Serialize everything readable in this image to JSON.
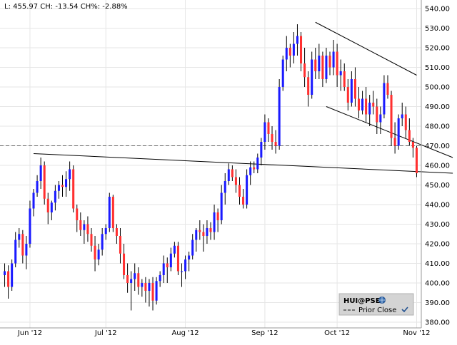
{
  "header": {
    "text": "L: 455.97 CH: -13.54 CH%: -2.88%"
  },
  "legend": {
    "title": "HUI@PSE",
    "entry": "Prior Close",
    "info_icon": "globe-icon",
    "check_icon": "checkmark-icon"
  },
  "colors": {
    "up": "#1a1aff",
    "down": "#ff3030",
    "grid": "#e6e6e6",
    "prior_close": "#666666",
    "trendline": "#000000"
  },
  "chart_data": {
    "type": "candlestick",
    "ylim": [
      380,
      545
    ],
    "yticks": [
      380,
      390,
      400,
      410,
      420,
      430,
      440,
      450,
      460,
      470,
      480,
      490,
      500,
      510,
      520,
      530,
      540
    ],
    "xticks": [
      {
        "label": "Jun '12",
        "index": 7
      },
      {
        "label": "Jul '12",
        "index": 28
      },
      {
        "label": "Aug '12",
        "index": 50
      },
      {
        "label": "Sep '12",
        "index": 72
      },
      {
        "label": "Oct '12",
        "index": 92
      },
      {
        "label": "Nov '12",
        "index": 114
      }
    ],
    "prior_close": 470,
    "trendlines": [
      {
        "start": [
          8,
          466
        ],
        "end": [
          124,
          456
        ]
      },
      {
        "start": [
          86,
          533
        ],
        "end": [
          114,
          506
        ]
      },
      {
        "start": [
          89,
          490
        ],
        "end": [
          124,
          464
        ]
      }
    ],
    "candles": [
      [
        404,
        410,
        398,
        406
      ],
      [
        406,
        409,
        392,
        398
      ],
      [
        398,
        412,
        396,
        410
      ],
      [
        410,
        426,
        408,
        422
      ],
      [
        422,
        428,
        418,
        425
      ],
      [
        425,
        427,
        410,
        414
      ],
      [
        414,
        424,
        407,
        420
      ],
      [
        420,
        442,
        418,
        438
      ],
      [
        438,
        448,
        434,
        446
      ],
      [
        446,
        455,
        444,
        452
      ],
      [
        452,
        464,
        448,
        460
      ],
      [
        460,
        462,
        440,
        443
      ],
      [
        443,
        446,
        430,
        436
      ],
      [
        436,
        442,
        432,
        441
      ],
      [
        441,
        450,
        437,
        447
      ],
      [
        447,
        452,
        443,
        450
      ],
      [
        450,
        455,
        444,
        449
      ],
      [
        449,
        457,
        444,
        453
      ],
      [
        453,
        462,
        447,
        458
      ],
      [
        458,
        460,
        436,
        438
      ],
      [
        438,
        440,
        426,
        432
      ],
      [
        432,
        436,
        424,
        427
      ],
      [
        427,
        432,
        420,
        430
      ],
      [
        430,
        434,
        421,
        425
      ],
      [
        425,
        428,
        416,
        419
      ],
      [
        419,
        424,
        406,
        412
      ],
      [
        412,
        420,
        409,
        417
      ],
      [
        417,
        428,
        414,
        425
      ],
      [
        425,
        430,
        422,
        428
      ],
      [
        428,
        446,
        426,
        444
      ],
      [
        444,
        445,
        426,
        428
      ],
      [
        428,
        430,
        420,
        424
      ],
      [
        424,
        428,
        410,
        415
      ],
      [
        415,
        420,
        402,
        404
      ],
      [
        404,
        410,
        395,
        400
      ],
      [
        400,
        406,
        386,
        402
      ],
      [
        402,
        410,
        396,
        405
      ],
      [
        405,
        408,
        394,
        398
      ],
      [
        398,
        402,
        393,
        400
      ],
      [
        400,
        403,
        390,
        396
      ],
      [
        396,
        402,
        388,
        400
      ],
      [
        400,
        403,
        386,
        391
      ],
      [
        391,
        403,
        389,
        401
      ],
      [
        401,
        406,
        398,
        404
      ],
      [
        404,
        414,
        400,
        410
      ],
      [
        410,
        413,
        400,
        408
      ],
      [
        408,
        418,
        406,
        415
      ],
      [
        415,
        421,
        413,
        419
      ],
      [
        419,
        421,
        404,
        406
      ],
      [
        406,
        410,
        398,
        406
      ],
      [
        406,
        414,
        402,
        412
      ],
      [
        412,
        416,
        406,
        414
      ],
      [
        414,
        425,
        412,
        422
      ],
      [
        422,
        428,
        416,
        427
      ],
      [
        427,
        432,
        422,
        426
      ],
      [
        426,
        430,
        416,
        424
      ],
      [
        424,
        432,
        420,
        428
      ],
      [
        428,
        431,
        422,
        426
      ],
      [
        426,
        440,
        422,
        436
      ],
      [
        436,
        438,
        426,
        432
      ],
      [
        432,
        450,
        430,
        446
      ],
      [
        446,
        456,
        440,
        452
      ],
      [
        452,
        461,
        450,
        458
      ],
      [
        458,
        460,
        452,
        454
      ],
      [
        454,
        458,
        446,
        450
      ],
      [
        450,
        454,
        440,
        444
      ],
      [
        444,
        448,
        438,
        440
      ],
      [
        440,
        458,
        438,
        455
      ],
      [
        455,
        462,
        450,
        459
      ],
      [
        459,
        462,
        456,
        458
      ],
      [
        458,
        466,
        456,
        464
      ],
      [
        464,
        474,
        460,
        472
      ],
      [
        472,
        486,
        468,
        482
      ],
      [
        482,
        484,
        472,
        476
      ],
      [
        476,
        480,
        468,
        472
      ],
      [
        472,
        478,
        466,
        470
      ],
      [
        470,
        504,
        468,
        500
      ],
      [
        500,
        516,
        498,
        514
      ],
      [
        514,
        526,
        508,
        520
      ],
      [
        520,
        522,
        510,
        516
      ],
      [
        516,
        528,
        512,
        522
      ],
      [
        522,
        532,
        516,
        526
      ],
      [
        526,
        528,
        508,
        512
      ],
      [
        512,
        520,
        500,
        505
      ],
      [
        505,
        508,
        490,
        496
      ],
      [
        496,
        518,
        494,
        514
      ],
      [
        514,
        520,
        504,
        508
      ],
      [
        508,
        522,
        504,
        516
      ],
      [
        516,
        518,
        500,
        504
      ],
      [
        504,
        520,
        502,
        516
      ],
      [
        516,
        518,
        506,
        510
      ],
      [
        510,
        524,
        506,
        518
      ],
      [
        518,
        522,
        500,
        506
      ],
      [
        506,
        514,
        498,
        508
      ],
      [
        508,
        512,
        498,
        500
      ],
      [
        500,
        504,
        488,
        492
      ],
      [
        492,
        508,
        490,
        504
      ],
      [
        504,
        510,
        490,
        494
      ],
      [
        494,
        500,
        484,
        488
      ],
      [
        488,
        498,
        486,
        494
      ],
      [
        494,
        500,
        482,
        486
      ],
      [
        486,
        496,
        480,
        492
      ],
      [
        492,
        498,
        486,
        490
      ],
      [
        490,
        494,
        476,
        482
      ],
      [
        482,
        490,
        476,
        486
      ],
      [
        486,
        506,
        484,
        502
      ],
      [
        502,
        506,
        494,
        496
      ],
      [
        496,
        498,
        470,
        474
      ],
      [
        474,
        482,
        466,
        470
      ],
      [
        470,
        486,
        468,
        484
      ],
      [
        484,
        492,
        480,
        486
      ],
      [
        486,
        490,
        474,
        478
      ],
      [
        478,
        484,
        470,
        472
      ],
      [
        472,
        474,
        464,
        469
      ],
      [
        469,
        470,
        454,
        456
      ]
    ]
  }
}
